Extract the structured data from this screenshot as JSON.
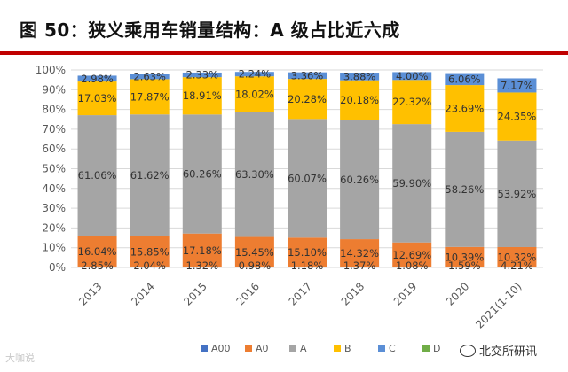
{
  "title": "图 50：狭义乘用车销量结构：A 级占比近六成",
  "chart_data": {
    "type": "bar",
    "stacked": true,
    "categories": [
      "2013",
      "2014",
      "2015",
      "2016",
      "2017",
      "2018",
      "2019",
      "2020",
      "2021(1-10)"
    ],
    "ylim": [
      0,
      100
    ],
    "yticks": [
      "0%",
      "10%",
      "20%",
      "30%",
      "40%",
      "50%",
      "60%",
      "70%",
      "80%",
      "90%",
      "100%"
    ],
    "series": [
      {
        "name": "A00",
        "color": "#4472c4",
        "values": [
          0,
          0,
          0,
          0,
          0,
          0,
          0,
          0,
          0
        ],
        "labels": [
          "",
          "",
          "",
          "",
          "",
          "",
          "",
          "",
          ""
        ]
      },
      {
        "name": "A0",
        "color": "#ed7d31",
        "values": [
          16.04,
          15.85,
          17.18,
          15.45,
          15.1,
          14.32,
          12.69,
          10.39,
          10.32
        ],
        "labels": [
          "16.04%",
          "15.85%",
          "17.18%",
          "15.45%",
          "15.10%",
          "14.32%",
          "12.69%",
          "10.39%",
          "10.32%"
        ]
      },
      {
        "name": "A",
        "color": "#a5a5a5",
        "values": [
          61.06,
          61.62,
          60.26,
          63.3,
          60.07,
          60.26,
          59.9,
          58.26,
          53.92
        ],
        "labels": [
          "61.06%",
          "61.62%",
          "60.26%",
          "63.30%",
          "60.07%",
          "60.26%",
          "59.90%",
          "58.26%",
          "53.92%"
        ]
      },
      {
        "name": "B",
        "color": "#ffc000",
        "values": [
          17.03,
          17.87,
          18.91,
          18.02,
          20.28,
          20.18,
          22.32,
          23.69,
          24.35
        ],
        "labels": [
          "17.03%",
          "17.87%",
          "18.91%",
          "18.02%",
          "20.28%",
          "20.18%",
          "22.32%",
          "23.69%",
          "24.35%"
        ]
      },
      {
        "name": "C",
        "color": "#5b8fd6",
        "values": [
          2.98,
          2.63,
          2.33,
          2.24,
          3.36,
          3.88,
          4.0,
          6.06,
          7.17
        ],
        "labels": [
          "2.98%",
          "2.63%",
          "2.33%",
          "2.24%",
          "3.36%",
          "3.88%",
          "4.00%",
          "6.06%",
          "7.17%"
        ]
      },
      {
        "name": "D",
        "color": "#70ad47",
        "values": [
          0,
          0,
          0,
          0,
          0,
          0,
          0,
          0,
          0
        ],
        "labels": [
          "",
          "",
          "",
          "",
          "",
          "",
          "",
          "",
          ""
        ]
      }
    ],
    "bottom_labels": [
      "2.85%",
      "2.04%",
      "1.32%",
      "0.98%",
      "1.18%",
      "1.37%",
      "1.08%",
      "1.59%",
      "4.21%"
    ],
    "legend": [
      "A00",
      "A0",
      "A",
      "B",
      "C",
      "D"
    ],
    "legend_position": "bottom"
  },
  "watermarks": {
    "left": "大咖说",
    "right": "北交所研讯"
  }
}
